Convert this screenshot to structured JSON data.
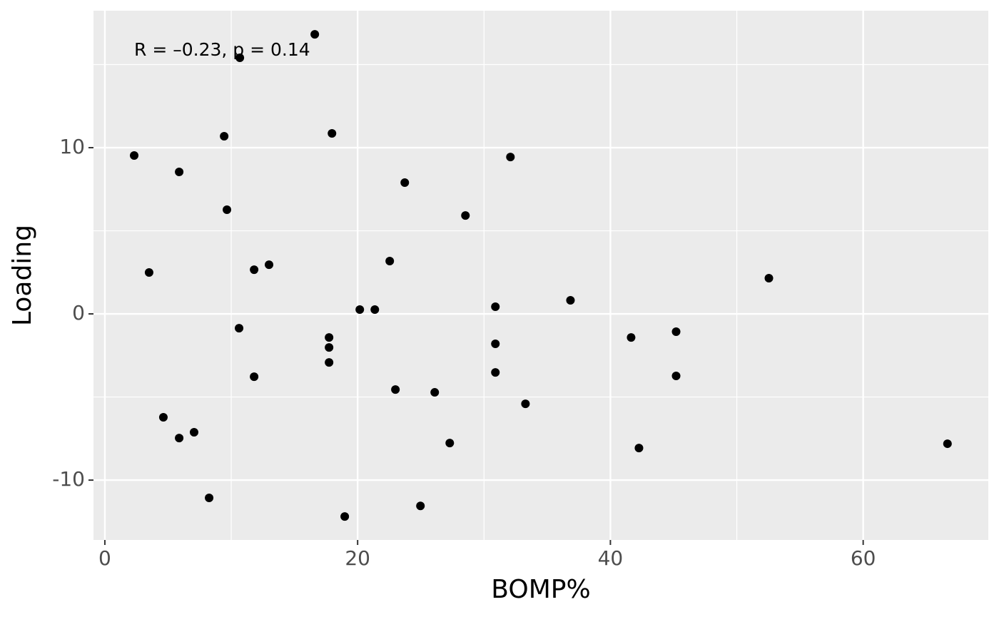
{
  "chart_data": {
    "type": "scatter",
    "x_label": "BOMP%",
    "y_label": "Loading",
    "annotation": "R = –0.23, p = 0.14",
    "color": "#000000",
    "panel_color": "#EBEBEB",
    "grid": true,
    "xlim": [
      -0.9,
      69.9
    ],
    "ylim": [
      -13.6,
      18.24
    ],
    "xticks": [
      0,
      20,
      40,
      60
    ],
    "yticks": [
      -10,
      0,
      10
    ],
    "x_minor_grid": [
      10,
      30,
      50
    ],
    "y_minor_grid": [
      -5,
      5,
      15
    ],
    "x": [
      16.61,
      10.68,
      2.32,
      9.44,
      17.97,
      32.09,
      5.88,
      23.73,
      9.66,
      28.53,
      3.5,
      11.81,
      12.99,
      22.54,
      52.54,
      20.17,
      21.36,
      30.9,
      36.84,
      10.62,
      17.74,
      17.74,
      17.74,
      30.9,
      41.64,
      45.2,
      11.81,
      30.9,
      45.2,
      22.99,
      26.1,
      33.28,
      4.63,
      5.88,
      7.06,
      27.29,
      42.26,
      66.67,
      8.25,
      24.97,
      18.98
    ],
    "y": [
      16.82,
      15.41,
      9.53,
      10.69,
      10.86,
      9.44,
      8.54,
      7.9,
      6.27,
      5.92,
      2.49,
      2.66,
      2.96,
      3.18,
      2.15,
      0.26,
      0.26,
      0.43,
      0.82,
      -0.86,
      -1.42,
      -2.02,
      -2.92,
      -1.8,
      -1.42,
      -1.07,
      -3.78,
      -3.52,
      -3.73,
      -4.55,
      -4.72,
      -5.41,
      -6.22,
      -7.47,
      -7.12,
      -7.77,
      -8.07,
      -7.81,
      -11.07,
      -11.55,
      -12.19
    ]
  }
}
